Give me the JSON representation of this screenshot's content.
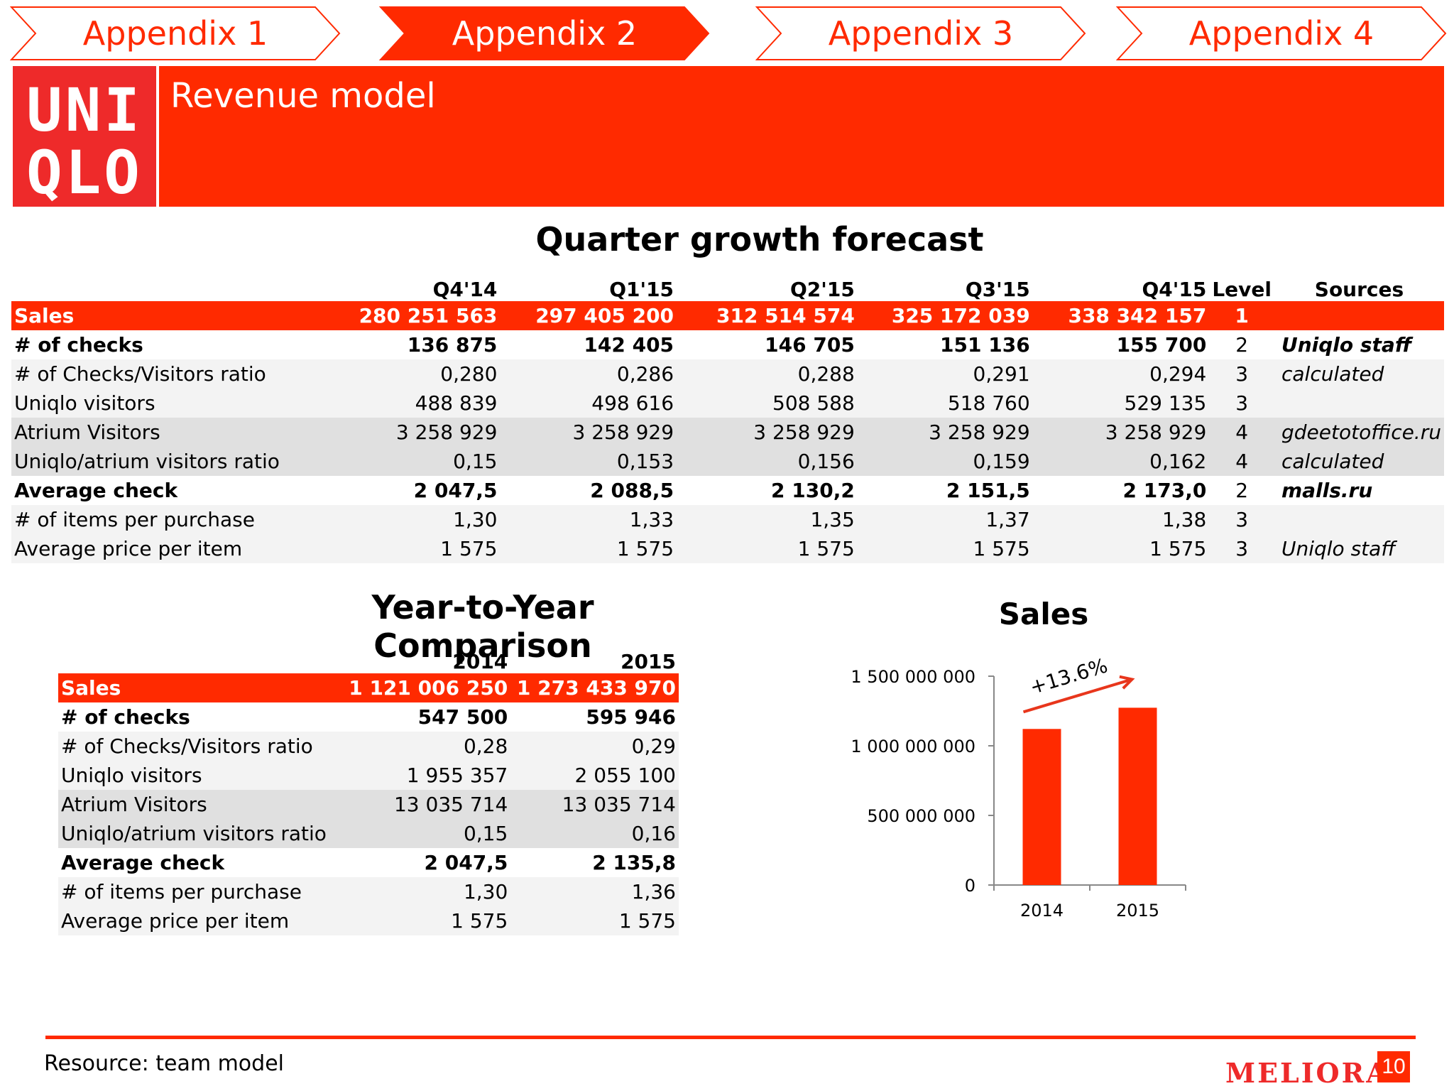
{
  "tabs": [
    {
      "label": "Appendix 1",
      "active": false
    },
    {
      "label": "Appendix 2",
      "active": true
    },
    {
      "label": "Appendix 3",
      "active": false
    },
    {
      "label": "Appendix 4",
      "active": false
    }
  ],
  "logo": {
    "line1": "UNI",
    "line2": "QLO"
  },
  "header": {
    "title": "Revenue model"
  },
  "quarter": {
    "title": "Quarter growth forecast",
    "columns": [
      "Q4'14",
      "Q1'15",
      "Q2'15",
      "Q3'15",
      "Q4'15",
      "Level",
      "Sources"
    ],
    "rows": [
      {
        "label": "Sales",
        "values": [
          "280 251 563",
          "297 405 200",
          "312 514 574",
          "325 172 039",
          "338 342 157"
        ],
        "level": "1",
        "source": ""
      },
      {
        "label": "# of checks",
        "values": [
          "136 875",
          "142 405",
          "146 705",
          "151 136",
          "155 700"
        ],
        "level": "2",
        "source": "Uniqlo staff"
      },
      {
        "label": "# of Checks/Visitors ratio",
        "values": [
          "0,280",
          "0,286",
          "0,288",
          "0,291",
          "0,294"
        ],
        "level": "3",
        "source": "calculated"
      },
      {
        "label": "Uniqlo visitors",
        "values": [
          "488 839",
          "498 616",
          "508 588",
          "518 760",
          "529 135"
        ],
        "level": "3",
        "source": ""
      },
      {
        "label": "Atrium Visitors",
        "values": [
          "3 258 929",
          "3 258 929",
          "3 258 929",
          "3 258 929",
          "3 258 929"
        ],
        "level": "4",
        "source": "gdeetotoffice.ru"
      },
      {
        "label": "Uniqlo/atrium visitors ratio",
        "values": [
          "0,15",
          "0,153",
          "0,156",
          "0,159",
          "0,162"
        ],
        "level": "4",
        "source": "calculated"
      },
      {
        "label": "Average check",
        "values": [
          "2 047,5",
          "2 088,5",
          "2 130,2",
          "2 151,5",
          "2 173,0"
        ],
        "level": "2",
        "source": "malls.ru"
      },
      {
        "label": "# of items per purchase",
        "values": [
          "1,30",
          "1,33",
          "1,35",
          "1,37",
          "1,38"
        ],
        "level": "3",
        "source": ""
      },
      {
        "label": "Average price per item",
        "values": [
          "1 575",
          "1 575",
          "1 575",
          "1 575",
          "1 575"
        ],
        "level": "3",
        "source": "Uniqlo staff"
      }
    ]
  },
  "yoy": {
    "title": "Year-to-Year Comparison",
    "columns": [
      "2014",
      "2015"
    ],
    "rows": [
      {
        "label": "Sales",
        "values": [
          "1 121 006 250",
          "1 273 433 970"
        ]
      },
      {
        "label": "# of checks",
        "values": [
          "547 500",
          "595 946"
        ]
      },
      {
        "label": "# of Checks/Visitors ratio",
        "values": [
          "0,28",
          "0,29"
        ]
      },
      {
        "label": "Uniqlo visitors",
        "values": [
          "1 955 357",
          "2 055 100"
        ]
      },
      {
        "label": "Atrium Visitors",
        "values": [
          "13 035 714",
          "13 035 714"
        ]
      },
      {
        "label": "Uniqlo/atrium visitors ratio",
        "values": [
          "0,15",
          "0,16"
        ]
      },
      {
        "label": "Average check",
        "values": [
          "2 047,5",
          "2 135,8"
        ]
      },
      {
        "label": "# of items per purchase",
        "values": [
          "1,30",
          "1,36"
        ]
      },
      {
        "label": "Average price per item",
        "values": [
          "1 575",
          "1 575"
        ]
      }
    ]
  },
  "chart_data": {
    "type": "bar",
    "title": "Sales",
    "categories": [
      "2014",
      "2015"
    ],
    "values": [
      1121006250,
      1273433970
    ],
    "ylim": [
      0,
      1500000000
    ],
    "yticks": [
      0,
      500000000,
      1000000000,
      1500000000
    ],
    "ytick_labels": [
      "0",
      "500 000 000",
      "1 000 000 000",
      "1 500 000 000"
    ],
    "annotation": "+13.6%",
    "bar_color": "#ff2a00",
    "grid": false
  },
  "footer": {
    "resource": "Resource: team model",
    "brand": "MELIORA",
    "page": "10"
  },
  "colors": {
    "accent": "#ff2a00",
    "logo": "#ee2a2a"
  }
}
